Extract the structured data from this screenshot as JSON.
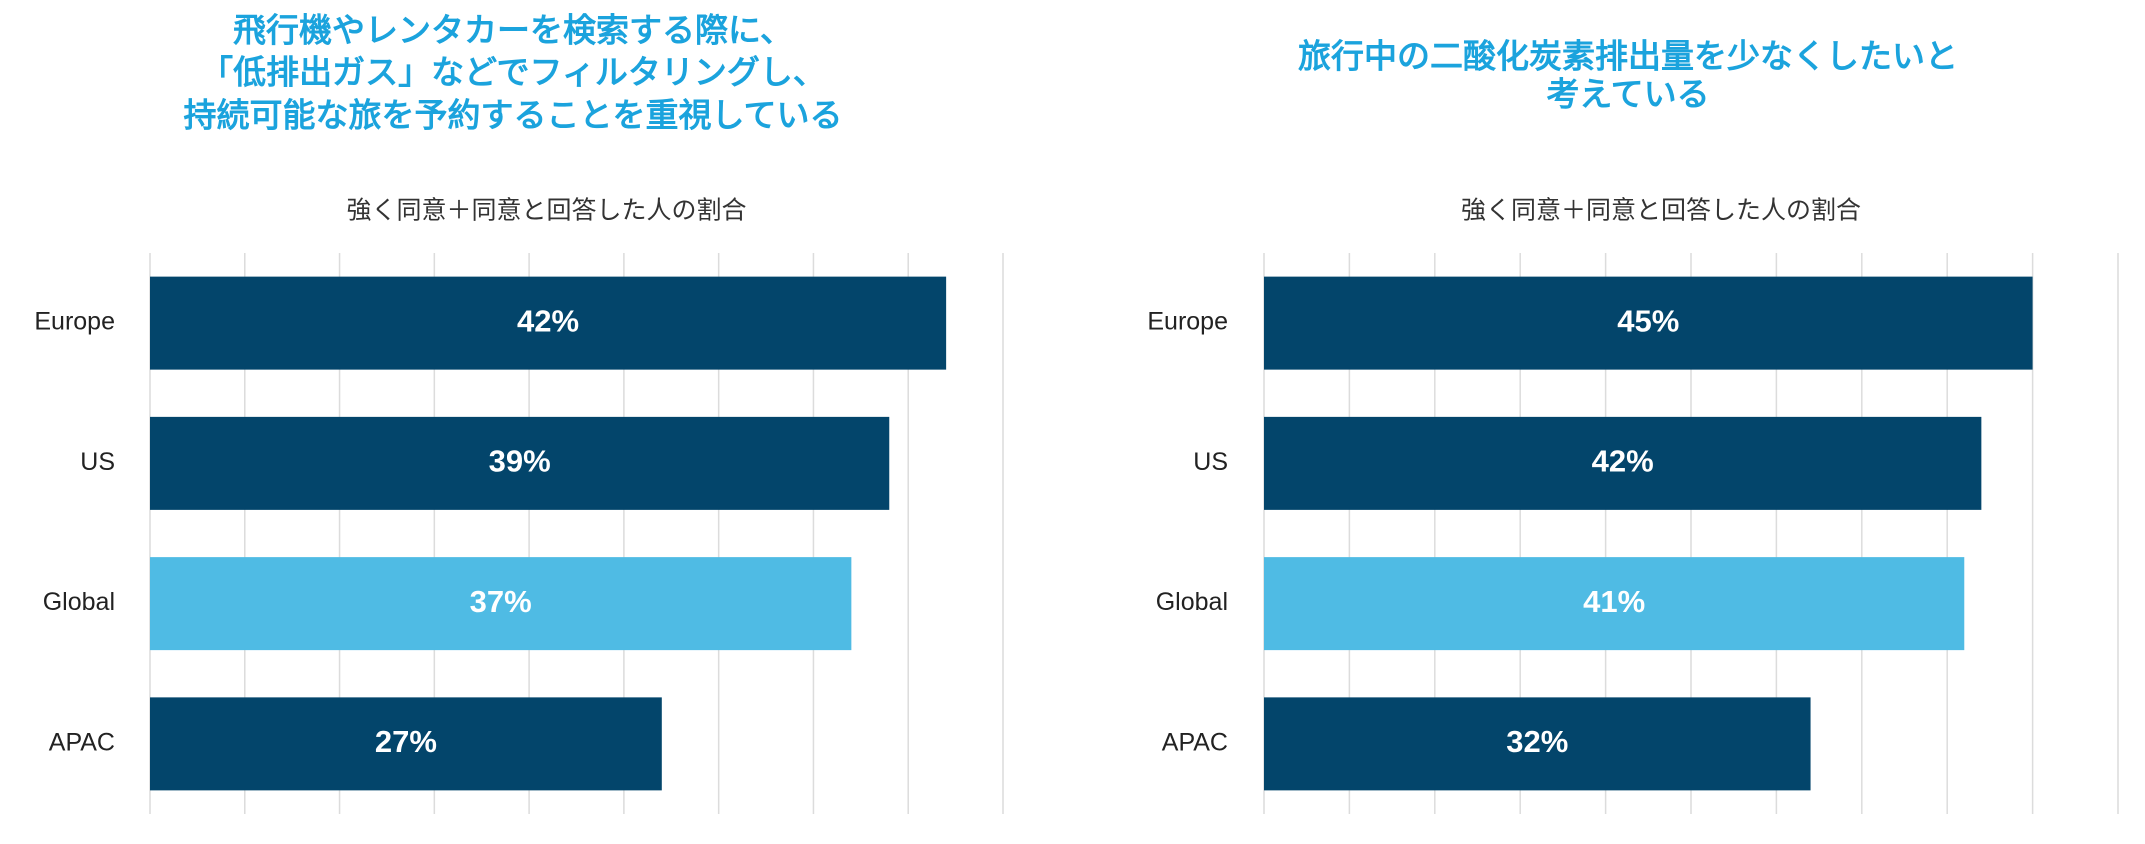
{
  "chart_data": [
    {
      "type": "bar",
      "orientation": "horizontal",
      "title": [
        "飛行機やレンタカーを検索する際に、",
        "「低排出ガス」などでフィルタリングし、",
        "持続可能な旅を予約することを重視している"
      ],
      "subtitle": "強く同意＋同意と回答した人の割合",
      "categories": [
        "Europe",
        "US",
        "Global",
        "APAC"
      ],
      "values": [
        42,
        39,
        37,
        27
      ],
      "value_labels": [
        "42%",
        "39%",
        "37%",
        "27%"
      ],
      "colors": [
        "#03456b",
        "#03456b",
        "#4fbbe4",
        "#03456b"
      ],
      "xlim": [
        0,
        45
      ],
      "xticks": [
        0,
        5,
        10,
        15,
        20,
        25,
        30,
        35,
        40,
        45
      ],
      "grid": true
    },
    {
      "type": "bar",
      "orientation": "horizontal",
      "title": [
        "旅行中の二酸化炭素排出量を少なくしたいと",
        "考えている"
      ],
      "subtitle": "強く同意＋同意と回答した人の割合",
      "categories": [
        "Europe",
        "US",
        "Global",
        "APAC"
      ],
      "values": [
        45,
        42,
        41,
        32
      ],
      "value_labels": [
        "45%",
        "42%",
        "41%",
        "32%"
      ],
      "colors": [
        "#03456b",
        "#03456b",
        "#4fbbe4",
        "#03456b"
      ],
      "xlim": [
        0,
        50
      ],
      "xticks": [
        0,
        5,
        10,
        15,
        20,
        25,
        30,
        35,
        40,
        45,
        50
      ],
      "grid": true
    }
  ]
}
